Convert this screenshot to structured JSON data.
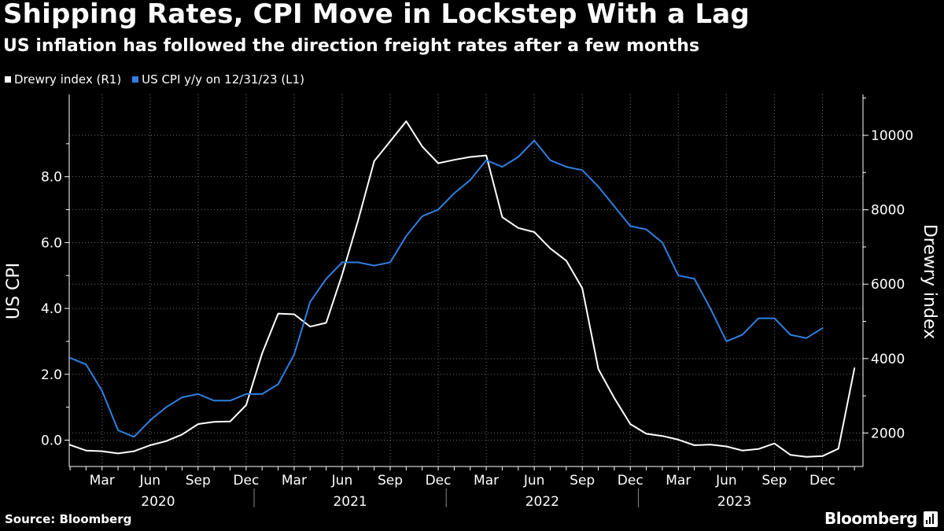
{
  "header": {
    "title": "Shipping Rates, CPI Move in Lockstep With a Lag",
    "subtitle": "US inflation has followed the direction freight rates after a few months"
  },
  "legend": {
    "drewry_label": "Drewry index (R1)",
    "cpi_label": "US CPI y/y on 12/31/23 (L1)"
  },
  "footer": {
    "source": "Source: Bloomberg",
    "brand": "Bloomberg"
  },
  "colors": {
    "background": "#000000",
    "drewry": "#ffffff",
    "cpi": "#2f7fe0",
    "grid": "#6e6e6e"
  },
  "chart_data": {
    "type": "line",
    "title": "Shipping Rates, CPI Move in Lockstep With a Lag",
    "ylabel_left": "US CPI",
    "ylabel_right": "Drewry index",
    "ylim_left": [
      -0.8,
      10.5
    ],
    "ylim_right": [
      1100,
      11100
    ],
    "yticks_left": [
      0,
      2,
      4,
      6,
      8
    ],
    "yticks_left_labels": [
      "0.0",
      "2.0",
      "4.0",
      "6.0",
      "8.0"
    ],
    "yticks_right": [
      2000,
      4000,
      6000,
      8000,
      10000
    ],
    "yticks_right_labels": [
      "2000",
      "4000",
      "6000",
      "8000",
      "10000"
    ],
    "month_ticks": [
      {
        "label": "Mar",
        "month": "2020-03"
      },
      {
        "label": "Jun",
        "month": "2020-06"
      },
      {
        "label": "Sep",
        "month": "2020-09"
      },
      {
        "label": "Dec",
        "month": "2020-12"
      },
      {
        "label": "Mar",
        "month": "2021-03"
      },
      {
        "label": "Jun",
        "month": "2021-06"
      },
      {
        "label": "Sep",
        "month": "2021-09"
      },
      {
        "label": "Dec",
        "month": "2021-12"
      },
      {
        "label": "Mar",
        "month": "2022-03"
      },
      {
        "label": "Jun",
        "month": "2022-06"
      },
      {
        "label": "Sep",
        "month": "2022-09"
      },
      {
        "label": "Dec",
        "month": "2022-12"
      },
      {
        "label": "Mar",
        "month": "2023-03"
      },
      {
        "label": "Jun",
        "month": "2023-06"
      },
      {
        "label": "Sep",
        "month": "2023-09"
      },
      {
        "label": "Dec",
        "month": "2023-12"
      }
    ],
    "years": [
      "2020",
      "2021",
      "2022",
      "2023"
    ],
    "grid": true,
    "series": [
      {
        "name": "Drewry index (R1)",
        "axis": "right",
        "start": "2020-01",
        "values": [
          1680,
          1530,
          1510,
          1450,
          1510,
          1670,
          1780,
          1960,
          2240,
          2300,
          2310,
          2750,
          4140,
          5210,
          5190,
          4860,
          4960,
          6260,
          7720,
          9310,
          9840,
          10380,
          9700,
          9250,
          9340,
          9420,
          9460,
          7800,
          7510,
          7400,
          6960,
          6630,
          5890,
          3720,
          2940,
          2240,
          1980,
          1920,
          1820,
          1670,
          1690,
          1640,
          1530,
          1570,
          1720,
          1410,
          1360,
          1380,
          1580,
          3740
        ]
      },
      {
        "name": "US CPI y/y on 12/31/23 (L1)",
        "axis": "left",
        "start": "2020-01",
        "values": [
          2.5,
          2.3,
          1.5,
          0.3,
          0.1,
          0.6,
          1.0,
          1.3,
          1.4,
          1.2,
          1.2,
          1.4,
          1.4,
          1.7,
          2.6,
          4.2,
          4.9,
          5.4,
          5.4,
          5.3,
          5.4,
          6.2,
          6.8,
          7.0,
          7.5,
          7.9,
          8.5,
          8.3,
          8.6,
          9.1,
          8.5,
          8.3,
          8.2,
          7.7,
          7.1,
          6.5,
          6.4,
          6.0,
          5.0,
          4.9,
          4.0,
          3.0,
          3.2,
          3.7,
          3.7,
          3.2,
          3.1,
          3.4
        ]
      }
    ]
  }
}
